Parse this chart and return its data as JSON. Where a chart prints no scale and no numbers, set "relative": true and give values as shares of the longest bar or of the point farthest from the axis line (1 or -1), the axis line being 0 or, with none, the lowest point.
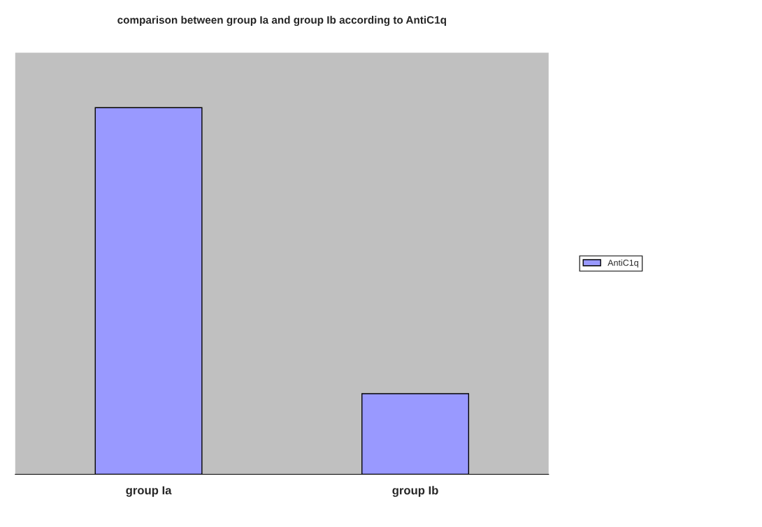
{
  "chart_data": {
    "type": "bar",
    "title": "comparison between group Ia and group Ib according to AntiC1q",
    "categories": [
      "group Ia",
      "group Ib"
    ],
    "series": [
      {
        "name": "AntiC1q",
        "color": "#9999ff",
        "values": [
          1,
          0.22
        ]
      }
    ],
    "relative": true,
    "legend": "right",
    "grid": false
  }
}
